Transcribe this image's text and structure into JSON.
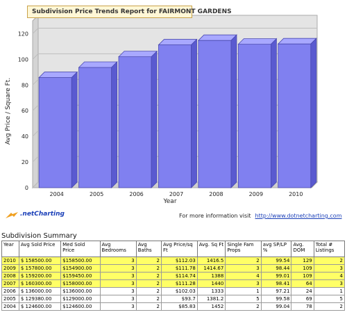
{
  "report": {
    "title": "Subdivision Price Trends Report for FAIRMONT GARDENS"
  },
  "chart_data": {
    "type": "bar",
    "title": "Subdivision Price Trends Report for FAIRMONT GARDENS",
    "xlabel": "Year",
    "ylabel": "Avg Price / Square Ft.",
    "categories": [
      "2004",
      "2005",
      "2006",
      "2007",
      "2008",
      "2009",
      "2010"
    ],
    "values": [
      85.83,
      93.7,
      102.03,
      111.28,
      114.74,
      111.78,
      112.03
    ],
    "ylim": [
      0,
      130
    ],
    "yticks": [
      "0",
      "20",
      "40",
      "60",
      "80",
      "100",
      "120"
    ],
    "grid": true,
    "bar_color": "#8080f0"
  },
  "footer": {
    "logo_text": ".netCharting",
    "info_text": "For more information visit",
    "link_text": "http://www.dotnetcharting.com"
  },
  "summary": {
    "title": "Subdivision Summary",
    "headers": [
      "Year",
      "Avg Sold Price",
      "Med Sold Price",
      "Avg Bedrooms",
      "Avg Baths",
      "Avg Price/sq Ft",
      "Avg. Sq Ft",
      "Single Fam Props",
      "avg SP/LP %",
      "Avg. DOM",
      "Total # Listings"
    ],
    "rows": [
      {
        "year": "2010",
        "avg_sold": "$ 158500.00",
        "med_sold": "$158500.00",
        "bedrooms": "3",
        "baths": "2",
        "price_sqft": "$112.03",
        "sqft": "1416.5",
        "single_fam": "2",
        "sp_lp": "99.54",
        "dom": "129",
        "listings": "2"
      },
      {
        "year": "2009",
        "avg_sold": "$ 157800.00",
        "med_sold": "$154900.00",
        "bedrooms": "3",
        "baths": "2",
        "price_sqft": "$111.78",
        "sqft": "1414.67",
        "single_fam": "3",
        "sp_lp": "98.44",
        "dom": "109",
        "listings": "3"
      },
      {
        "year": "2008",
        "avg_sold": "$ 159200.00",
        "med_sold": "$159450.00",
        "bedrooms": "3",
        "baths": "2",
        "price_sqft": "$114.74",
        "sqft": "1388",
        "single_fam": "4",
        "sp_lp": "99.01",
        "dom": "109",
        "listings": "4"
      },
      {
        "year": "2007",
        "avg_sold": "$ 160300.00",
        "med_sold": "$158000.00",
        "bedrooms": "3",
        "baths": "2",
        "price_sqft": "$111.28",
        "sqft": "1440",
        "single_fam": "3",
        "sp_lp": "98.41",
        "dom": "64",
        "listings": "3"
      },
      {
        "year": "2006",
        "avg_sold": "$ 136000.00",
        "med_sold": "$136000.00",
        "bedrooms": "3",
        "baths": "2",
        "price_sqft": "$102.03",
        "sqft": "1333",
        "single_fam": "1",
        "sp_lp": "97.21",
        "dom": "24",
        "listings": "1"
      },
      {
        "year": "2005",
        "avg_sold": "$ 129380.00",
        "med_sold": "$129000.00",
        "bedrooms": "3",
        "baths": "2",
        "price_sqft": "$93.7",
        "sqft": "1381.2",
        "single_fam": "5",
        "sp_lp": "99.58",
        "dom": "69",
        "listings": "5"
      },
      {
        "year": "2004",
        "avg_sold": "$ 124600.00",
        "med_sold": "$124600.00",
        "bedrooms": "3",
        "baths": "2",
        "price_sqft": "$85.83",
        "sqft": "1452",
        "single_fam": "2",
        "sp_lp": "99.04",
        "dom": "78",
        "listings": "2"
      }
    ],
    "highlighted_years": [
      "2010",
      "2009",
      "2008",
      "2007"
    ],
    "highlight_color": "#ffff66"
  }
}
